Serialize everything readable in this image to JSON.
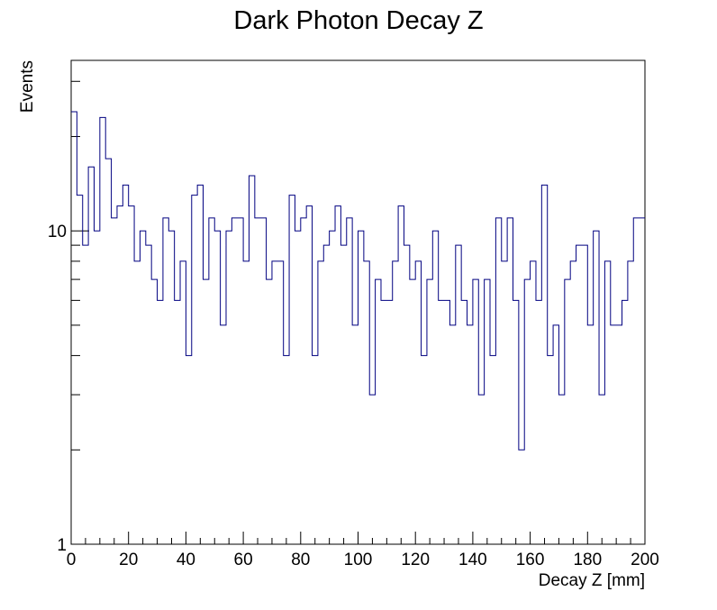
{
  "chart_data": {
    "type": "histogram",
    "title": "Dark Photon Decay Z",
    "xlabel": "Decay Z [mm]",
    "ylabel": "Events",
    "xlim": [
      0,
      200
    ],
    "ylim": [
      1,
      35
    ],
    "y_scale": "log",
    "grid": false,
    "legend": false,
    "line_color": "#000080",
    "x_tick_labels": [
      "0",
      "20",
      "40",
      "60",
      "80",
      "100",
      "120",
      "140",
      "160",
      "180",
      "200"
    ],
    "y_tick_labels": [
      "1",
      "10"
    ],
    "bin_width": 2,
    "bin_start": 0,
    "counts": [
      24,
      13,
      9,
      16,
      10,
      23,
      17,
      11,
      12,
      14,
      12,
      8,
      10,
      9,
      7,
      6,
      11,
      10,
      6,
      8,
      4,
      13,
      14,
      7,
      11,
      10,
      5,
      10,
      11,
      11,
      8,
      15,
      11,
      11,
      7,
      8,
      8,
      4,
      13,
      10,
      11,
      12,
      4,
      8,
      9,
      10,
      12,
      9,
      11,
      5,
      10,
      8,
      3,
      7,
      6,
      6,
      8,
      12,
      9,
      7,
      8,
      4,
      7,
      10,
      6,
      6,
      5,
      9,
      6,
      5,
      7,
      3,
      7,
      4,
      11,
      8,
      11,
      6,
      2,
      7,
      8,
      6,
      14,
      4,
      5,
      3,
      7,
      8,
      9,
      9,
      5,
      10,
      3,
      8,
      5,
      5,
      6,
      8,
      11,
      11
    ]
  }
}
